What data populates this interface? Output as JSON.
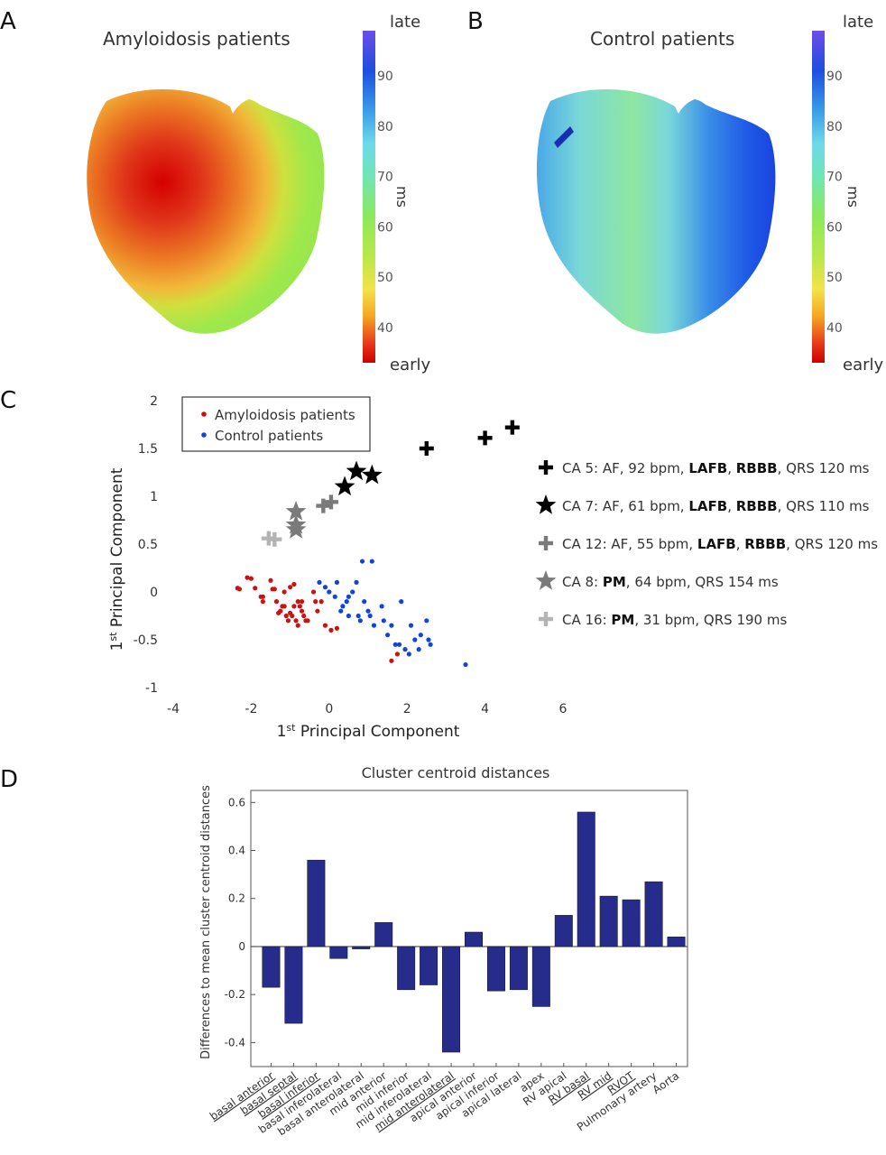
{
  "panels": {
    "a": {
      "letter": "A",
      "title": "Amyloidosis patients",
      "colorbar": {
        "top_label": "late",
        "bottom_label": "early",
        "unit": "ms",
        "ticks": [
          "90",
          "80",
          "70",
          "60",
          "50",
          "40"
        ]
      }
    },
    "b": {
      "letter": "B",
      "title": "Control patients",
      "colorbar": {
        "top_label": "late",
        "bottom_label": "early",
        "unit": "ms",
        "ticks": [
          "90",
          "80",
          "70",
          "60",
          "50",
          "40"
        ]
      }
    },
    "c": {
      "letter": "C",
      "legend": [
        {
          "label": "Amyloidosis patients",
          "color": "#cc1111"
        },
        {
          "label": "Control patients",
          "color": "#1144dd"
        }
      ],
      "case_legend": [
        {
          "marker": "plus",
          "color": "#000000",
          "parts": [
            "CA 5: AF, 92 bpm, ",
            "LAFB",
            ", ",
            "RBBB",
            ", QRS 120 ms"
          ]
        },
        {
          "marker": "star",
          "color": "#000000",
          "parts": [
            "CA 7: AF, 61 bpm, ",
            "LAFB",
            ", ",
            "RBBB",
            ", QRS 110 ms"
          ]
        },
        {
          "marker": "plus",
          "color": "#7a7a7a",
          "parts": [
            "CA 12: AF, 55 bpm, ",
            "LAFB",
            ", ",
            "RBBB",
            ", QRS 120 ms"
          ]
        },
        {
          "marker": "star",
          "color": "#7a7a7a",
          "parts": [
            "CA 8: ",
            "PM",
            ", 64 bpm, QRS 154 ms"
          ]
        },
        {
          "marker": "plus",
          "color": "#b4b4b4",
          "parts": [
            "CA 16: ",
            "PM",
            ", 31 bpm, QRS 190 ms"
          ]
        }
      ]
    },
    "d": {
      "letter": "D"
    }
  },
  "chart_data": [
    {
      "type": "scatter",
      "xlabel_main": "1",
      "xlabel_sup": "st",
      "xlabel_rest": " Principal Component",
      "ylabel_main": "1",
      "ylabel_sup": "st",
      "ylabel_rest": " Principal Component",
      "xlim": [
        -4,
        6
      ],
      "ylim": [
        -1,
        2
      ],
      "xticks": [
        -4,
        -2,
        0,
        2,
        4,
        6
      ],
      "yticks": [
        -1,
        -0.5,
        0,
        0.5,
        1,
        1.5,
        2
      ],
      "xtick_labels": [
        "-4",
        "-2",
        "0",
        "2",
        "4",
        "6"
      ],
      "ytick_labels": [
        "-1",
        "-0.5",
        "0",
        "0.5",
        "1",
        "1.5",
        "2"
      ],
      "series": [
        {
          "name": "Amyloidosis patients",
          "color": "#cc1111",
          "marker": "dot",
          "points": [
            [
              -2.35,
              0.04
            ],
            [
              -2.3,
              0.03
            ],
            [
              -2.1,
              0.15
            ],
            [
              -2.0,
              0.14
            ],
            [
              -1.9,
              0.04
            ],
            [
              -1.75,
              -0.05
            ],
            [
              -1.7,
              -0.1
            ],
            [
              -1.7,
              -0.05
            ],
            [
              -1.5,
              0.12
            ],
            [
              -1.45,
              0.03
            ],
            [
              -1.4,
              0.03
            ],
            [
              -1.35,
              -0.1
            ],
            [
              -1.3,
              -0.22
            ],
            [
              -1.25,
              -0.2
            ],
            [
              -1.2,
              -0.15
            ],
            [
              -1.15,
              0.0
            ],
            [
              -1.15,
              -0.15
            ],
            [
              -1.1,
              -0.25
            ],
            [
              -1.05,
              -0.3
            ],
            [
              -1.0,
              -0.22
            ],
            [
              -1.0,
              0.05
            ],
            [
              -0.95,
              -0.25
            ],
            [
              -0.9,
              0.08
            ],
            [
              -0.9,
              -0.15
            ],
            [
              -0.85,
              -0.3
            ],
            [
              -0.8,
              -0.1
            ],
            [
              -0.8,
              -0.35
            ],
            [
              -0.75,
              -0.15
            ],
            [
              -0.7,
              -0.2
            ],
            [
              -0.7,
              -0.1
            ],
            [
              -0.65,
              -0.25
            ],
            [
              -0.6,
              -0.3
            ],
            [
              -0.55,
              -0.3
            ],
            [
              -0.4,
              0.0
            ],
            [
              -0.35,
              -0.1
            ],
            [
              -0.3,
              -0.2
            ],
            [
              -0.2,
              -0.1
            ],
            [
              -0.1,
              -0.35
            ],
            [
              0.05,
              -0.4
            ],
            [
              0.2,
              -0.38
            ],
            [
              1.6,
              -0.72
            ],
            [
              1.75,
              -0.65
            ]
          ]
        },
        {
          "name": "Control patients",
          "color": "#1144dd",
          "marker": "dot",
          "points": [
            [
              -0.25,
              0.1
            ],
            [
              -0.1,
              0.05
            ],
            [
              0.0,
              0.0
            ],
            [
              0.15,
              -0.05
            ],
            [
              0.2,
              0.1
            ],
            [
              0.3,
              -0.2
            ],
            [
              0.35,
              -0.15
            ],
            [
              0.45,
              -0.1
            ],
            [
              0.5,
              -0.25
            ],
            [
              0.5,
              -0.05
            ],
            [
              0.6,
              0.0
            ],
            [
              0.7,
              0.1
            ],
            [
              0.75,
              -0.25
            ],
            [
              0.8,
              -0.3
            ],
            [
              0.85,
              0.32
            ],
            [
              0.9,
              -0.1
            ],
            [
              1.0,
              -0.2
            ],
            [
              1.05,
              -0.25
            ],
            [
              1.1,
              0.32
            ],
            [
              1.15,
              -0.35
            ],
            [
              1.35,
              -0.15
            ],
            [
              1.4,
              -0.3
            ],
            [
              1.5,
              -0.45
            ],
            [
              1.6,
              -0.35
            ],
            [
              1.7,
              -0.55
            ],
            [
              1.8,
              -0.55
            ],
            [
              1.85,
              -0.1
            ],
            [
              1.95,
              -0.6
            ],
            [
              2.05,
              -0.65
            ],
            [
              2.1,
              -0.35
            ],
            [
              2.2,
              -0.5
            ],
            [
              2.3,
              -0.6
            ],
            [
              2.35,
              -0.45
            ],
            [
              2.5,
              -0.3
            ],
            [
              2.55,
              -0.5
            ],
            [
              2.6,
              -0.55
            ],
            [
              3.5,
              -0.76
            ]
          ]
        },
        {
          "name": "CA 5",
          "color": "#000000",
          "marker": "plus",
          "points": [
            [
              2.5,
              1.5
            ],
            [
              4.0,
              1.61
            ],
            [
              4.7,
              1.72
            ]
          ]
        },
        {
          "name": "CA 7",
          "color": "#000000",
          "marker": "star",
          "points": [
            [
              0.4,
              1.1
            ],
            [
              0.7,
              1.26
            ],
            [
              1.1,
              1.22
            ]
          ]
        },
        {
          "name": "CA 12",
          "color": "#7a7a7a",
          "marker": "plus",
          "points": [
            [
              -0.15,
              0.9
            ],
            [
              0.05,
              0.94
            ]
          ]
        },
        {
          "name": "CA 8",
          "color": "#7a7a7a",
          "marker": "star",
          "points": [
            [
              -0.85,
              0.84
            ],
            [
              -0.85,
              0.7
            ],
            [
              -0.85,
              0.65
            ]
          ]
        },
        {
          "name": "CA 16",
          "color": "#b4b4b4",
          "marker": "plus",
          "points": [
            [
              -1.55,
              0.56
            ],
            [
              -1.4,
              0.55
            ]
          ]
        }
      ]
    },
    {
      "type": "bar",
      "title": "Cluster centroid distances",
      "ylabel": "Differences to mean cluster centroid distances",
      "ylim": [
        -0.5,
        0.65
      ],
      "yticks": [
        -0.4,
        -0.2,
        0,
        0.2,
        0.4,
        0.6
      ],
      "ytick_labels": [
        "-0.4",
        "-0.2",
        "0",
        "0.2",
        "0.4",
        "0.6"
      ],
      "bar_color": "#262c8c",
      "categories": [
        "basal anterior",
        "basal septal",
        "basal inferior",
        "basal inferolateral",
        "basal anterolateral",
        "mid anterior",
        "mid inferior",
        "mid inferolateral",
        "mid anterolateral",
        "apical anterior",
        "apical inferior",
        "apical lateral",
        "apex",
        "RV apical",
        "RV basal",
        "RV mid",
        "RVOT",
        "Pulmonary artery",
        "Aorta"
      ],
      "underlined": [
        true,
        true,
        true,
        false,
        false,
        false,
        false,
        false,
        true,
        false,
        false,
        false,
        false,
        false,
        true,
        true,
        true,
        false,
        false
      ],
      "values": [
        -0.17,
        -0.32,
        0.36,
        -0.05,
        -0.01,
        0.1,
        -0.18,
        -0.16,
        -0.44,
        0.06,
        -0.185,
        -0.18,
        -0.25,
        0.13,
        0.56,
        0.21,
        0.195,
        0.27,
        0.04
      ]
    }
  ]
}
